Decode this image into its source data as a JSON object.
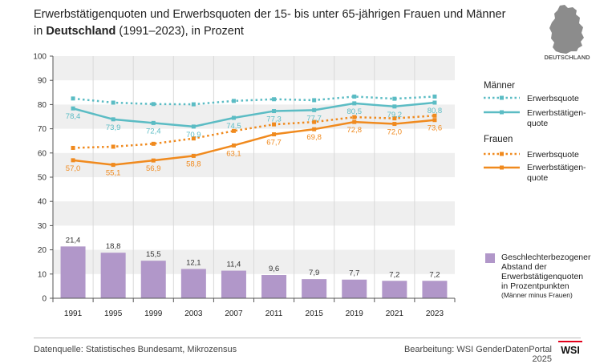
{
  "header": {
    "title_line1": "Erwerbstätigenquoten und Erwerbsquoten der 15- bis unter 65-jährigen Frauen und Männer",
    "title_in": "in ",
    "title_bold": "Deutschland",
    "title_rest": " (1991–2023), in Prozent"
  },
  "map": {
    "label": "DEUTSCHLAND"
  },
  "legend": {
    "maenner_heading": "Männer",
    "frauen_heading": "Frauen",
    "erwerbsquote": "Erwerbsquote",
    "erwerbstaetigenquote_line1": "Erwerbstätigen-",
    "erwerbstaetigenquote_line2": "quote",
    "gap_lines": [
      "Geschlechterbezogener",
      "Abstand der",
      "Erwerbstätigenquoten",
      "in Prozentpunkten"
    ],
    "gap_note": "(Männer minus Frauen)"
  },
  "footer": {
    "source": "Datenquelle: Statistisches Bundesamt, Mikrozensus",
    "credit": "Bearbeitung: WSI GenderDatenPortal 2025",
    "logo_text": "WSI"
  },
  "colors": {
    "men": "#5bbcc4",
    "women": "#f08a1e",
    "bars": "#b197c9",
    "bar_label": "#333333",
    "stripe": "#efefef",
    "grid_vertical": "#d9d9d9",
    "axis": "#555555"
  },
  "chart_data": {
    "type": "line+bar",
    "categories": [
      "1991",
      "1995",
      "1999",
      "2003",
      "2007",
      "2011",
      "2015",
      "2019",
      "2021",
      "2023"
    ],
    "ylim": [
      0,
      100
    ],
    "yticks": [
      0,
      10,
      20,
      30,
      40,
      50,
      60,
      70,
      80,
      90,
      100
    ],
    "series": [
      {
        "name": "Männer Erwerbsquote",
        "style": "dotted",
        "color": "#5bbcc4",
        "values": [
          82.5,
          80.8,
          80.2,
          80.1,
          81.5,
          82.2,
          81.8,
          83.3,
          82.4,
          83.3
        ],
        "labeled": false
      },
      {
        "name": "Männer Erwerbstätigenquote",
        "style": "solid",
        "color": "#5bbcc4",
        "values": [
          78.4,
          73.9,
          72.4,
          70.9,
          74.5,
          77.3,
          77.7,
          80.5,
          79.2,
          80.8
        ],
        "labels": [
          "78,4",
          "73,9",
          "72,4",
          "70,9",
          "74,5",
          "77,3",
          "77,7",
          "80,5",
          "79,2",
          "80,8"
        ],
        "labeled": true
      },
      {
        "name": "Frauen Erwerbsquote",
        "style": "dotted",
        "color": "#f08a1e",
        "values": [
          62.1,
          62.6,
          63.8,
          66.0,
          69.1,
          71.8,
          72.8,
          74.8,
          74.3,
          75.4
        ],
        "labeled": false
      },
      {
        "name": "Frauen Erwerbstätigenquote",
        "style": "solid",
        "color": "#f08a1e",
        "values": [
          57.0,
          55.1,
          56.9,
          58.8,
          63.1,
          67.7,
          69.8,
          72.8,
          72.0,
          73.6
        ],
        "labels": [
          "57,0",
          "55,1",
          "56,9",
          "58,8",
          "63,1",
          "67,7",
          "69,8",
          "72,8",
          "72,0",
          "73,6"
        ],
        "labeled": true
      }
    ],
    "bars": {
      "name": "Geschlechterbezogener Abstand der Erwerbstätigenquoten in Prozentpunkten (Männer minus Frauen)",
      "values": [
        21.4,
        18.8,
        15.5,
        12.1,
        11.4,
        9.6,
        7.9,
        7.7,
        7.2,
        7.2
      ],
      "labels": [
        "21,4",
        "18,8",
        "15,5",
        "12,1",
        "11,4",
        "9,6",
        "7,9",
        "7,7",
        "7,2",
        "7,2"
      ]
    }
  }
}
